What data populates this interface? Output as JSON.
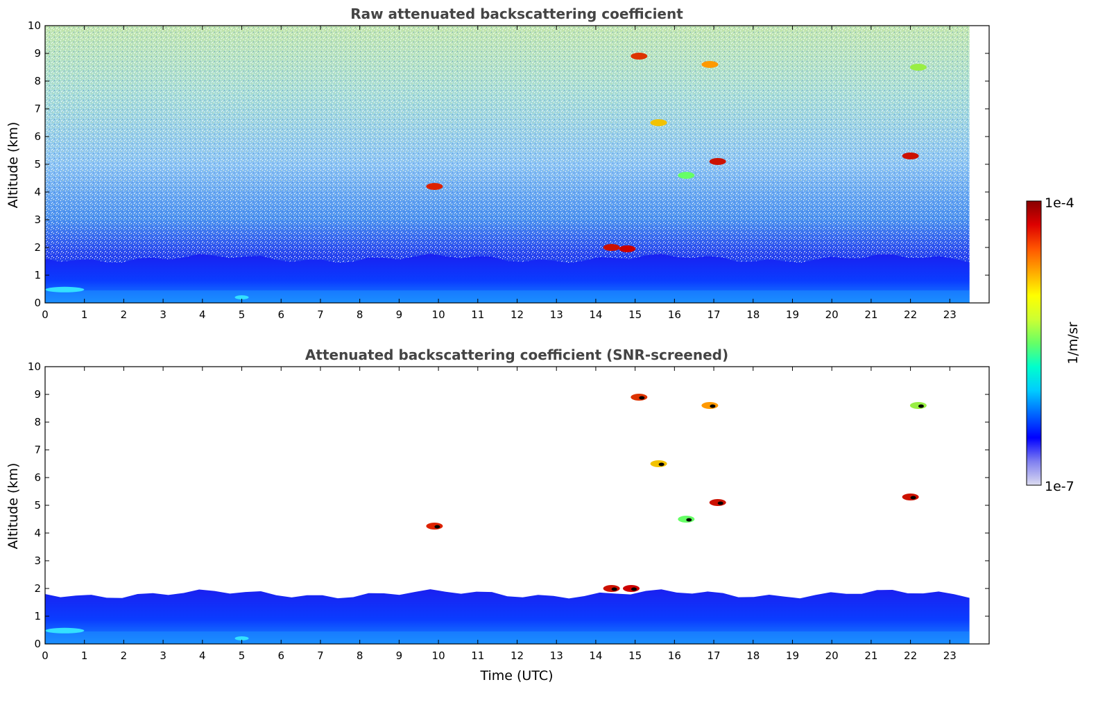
{
  "chart_data": [
    {
      "type": "heatmap",
      "title": "Raw attenuated backscattering coefficient",
      "xlabel": "",
      "ylabel": "Altitude (km)",
      "xlim": [
        0,
        24
      ],
      "ylim": [
        0,
        10
      ],
      "x_ticks": [
        "0",
        "1",
        "2",
        "3",
        "4",
        "5",
        "6",
        "7",
        "8",
        "9",
        "10",
        "11",
        "12",
        "13",
        "14",
        "15",
        "16",
        "17",
        "18",
        "19",
        "20",
        "21",
        "22",
        "23"
      ],
      "y_ticks": [
        "0",
        "1",
        "2",
        "3",
        "4",
        "5",
        "6",
        "7",
        "8",
        "9",
        "10"
      ],
      "data_end_time": 23.5,
      "grid": false,
      "features": [
        {
          "name": "boundary layer",
          "t_start": 0,
          "t_end": 23.5,
          "alt_top": 1.6
        },
        {
          "name": "cloud",
          "time": 9.9,
          "altitude": 4.2
        },
        {
          "name": "cloud",
          "time": 14.4,
          "altitude": 2.0
        },
        {
          "name": "cloud",
          "time": 14.8,
          "altitude": 1.95
        },
        {
          "name": "cloud",
          "time": 15.1,
          "altitude": 8.9
        },
        {
          "name": "cloud",
          "time": 15.6,
          "altitude": 6.5
        },
        {
          "name": "cloud",
          "time": 16.3,
          "altitude": 4.6
        },
        {
          "name": "cloud",
          "time": 17.1,
          "altitude": 5.1
        },
        {
          "name": "cloud",
          "time": 16.9,
          "altitude": 8.6
        },
        {
          "name": "cloud",
          "time": 22.0,
          "altitude": 5.3
        },
        {
          "name": "cloud",
          "time": 22.2,
          "altitude": 8.5
        }
      ]
    },
    {
      "type": "heatmap",
      "title": "Attenuated backscattering coefficient (SNR-screened)",
      "xlabel": "Time (UTC)",
      "ylabel": "Altitude (km)",
      "xlim": [
        0,
        24
      ],
      "ylim": [
        0,
        10
      ],
      "x_ticks": [
        "0",
        "1",
        "2",
        "3",
        "4",
        "5",
        "6",
        "7",
        "8",
        "9",
        "10",
        "11",
        "12",
        "13",
        "14",
        "15",
        "16",
        "17",
        "18",
        "19",
        "20",
        "21",
        "22",
        "23"
      ],
      "y_ticks": [
        "0",
        "1",
        "2",
        "3",
        "4",
        "5",
        "6",
        "7",
        "8",
        "9",
        "10"
      ],
      "data_end_time": 23.5,
      "grid": false,
      "features": [
        {
          "name": "boundary layer",
          "t_start": 0,
          "t_end": 23.5,
          "alt_top": 1.8
        },
        {
          "name": "cloud",
          "time": 9.9,
          "altitude": 4.25
        },
        {
          "name": "cloud",
          "time": 14.4,
          "altitude": 2.0
        },
        {
          "name": "cloud",
          "time": 14.9,
          "altitude": 2.0
        },
        {
          "name": "cloud",
          "time": 15.1,
          "altitude": 8.9
        },
        {
          "name": "cloud",
          "time": 15.6,
          "altitude": 6.5
        },
        {
          "name": "cloud",
          "time": 16.3,
          "altitude": 4.5
        },
        {
          "name": "cloud",
          "time": 17.1,
          "altitude": 5.1
        },
        {
          "name": "cloud",
          "time": 16.9,
          "altitude": 8.6
        },
        {
          "name": "cloud",
          "time": 22.0,
          "altitude": 5.3
        },
        {
          "name": "cloud",
          "time": 22.2,
          "altitude": 8.6
        }
      ]
    }
  ],
  "colorbar": {
    "label": "1/m/sr",
    "min_label": "1e-7",
    "max_label": "1e-4",
    "scale": "log",
    "colormap": [
      "#dcdcf0",
      "#8080f0",
      "#0000ff",
      "#0066ff",
      "#00ccff",
      "#00ffcc",
      "#66ff66",
      "#ccff33",
      "#ffff00",
      "#ffaa00",
      "#ff5500",
      "#dd0000",
      "#880000"
    ]
  }
}
